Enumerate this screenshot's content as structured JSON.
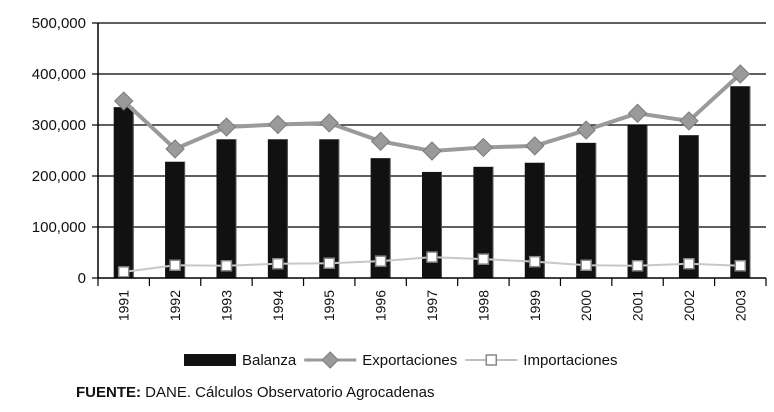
{
  "chart_data": {
    "type": "bar",
    "categories": [
      "1991",
      "1992",
      "1993",
      "1994",
      "1995",
      "1996",
      "1997",
      "1998",
      "1999",
      "2000",
      "2001",
      "2002",
      "2003"
    ],
    "series": [
      {
        "name": "Balanza",
        "type": "bar",
        "color": "#111111",
        "values": [
          335000,
          228000,
          272000,
          272000,
          272000,
          235000,
          208000,
          218000,
          226000,
          265000,
          299000,
          280000,
          376000
        ]
      },
      {
        "name": "Exportaciones",
        "type": "line",
        "marker": "diamond",
        "color": "#9a9a9a",
        "values": [
          347000,
          253000,
          296000,
          301000,
          304000,
          268000,
          249000,
          256000,
          259000,
          290000,
          323000,
          308000,
          400000
        ]
      },
      {
        "name": "Importaciones",
        "type": "line",
        "marker": "square-open",
        "color": "#c8c8c8",
        "values": [
          12000,
          25000,
          24000,
          28000,
          29000,
          33000,
          41000,
          37000,
          32000,
          25000,
          24000,
          28000,
          24000
        ]
      }
    ],
    "y_ticks": [
      "0",
      "100,000",
      "200,000",
      "300,000",
      "400,000",
      "500,000"
    ],
    "ylim": [
      0,
      500000
    ],
    "grid": true,
    "legend_position": "bottom"
  },
  "source": {
    "label": "FUENTE:",
    "text": "DANE. Cálculos Observatorio Agrocadenas"
  }
}
